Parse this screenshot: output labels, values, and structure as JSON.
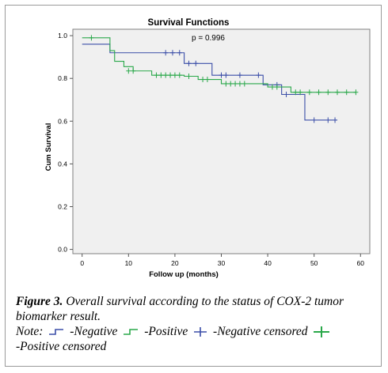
{
  "chart_data": {
    "type": "line",
    "title": "Survival Functions",
    "annotation": "p = 0.996",
    "xlabel": "Follow up (months)",
    "ylabel": "Cum Survival",
    "xlim": [
      -2,
      62
    ],
    "ylim": [
      -0.02,
      1.03
    ],
    "xticks": [
      "0",
      "10",
      "20",
      "30",
      "40",
      "50",
      "60"
    ],
    "yticks": [
      "0.0",
      "0.2",
      "0.4",
      "0.6",
      "0.8",
      "1.0"
    ],
    "grid": false,
    "series": [
      {
        "name": "Negative",
        "color": "#3b4ea8",
        "steps": [
          [
            0,
            0.96
          ],
          [
            6,
            0.92
          ],
          [
            22,
            0.87
          ],
          [
            28,
            0.815
          ],
          [
            39,
            0.77
          ],
          [
            43,
            0.725
          ],
          [
            48,
            0.605
          ],
          [
            55,
            0.605
          ]
        ],
        "censored": [
          [
            18,
            0.92
          ],
          [
            19.5,
            0.92
          ],
          [
            21,
            0.92
          ],
          [
            23,
            0.87
          ],
          [
            24.5,
            0.87
          ],
          [
            30,
            0.815
          ],
          [
            31,
            0.815
          ],
          [
            34,
            0.815
          ],
          [
            38,
            0.815
          ],
          [
            42,
            0.77
          ],
          [
            44,
            0.725
          ],
          [
            50,
            0.605
          ],
          [
            53,
            0.605
          ],
          [
            54.5,
            0.605
          ]
        ]
      },
      {
        "name": "Positive",
        "color": "#2aa84a",
        "steps": [
          [
            0,
            0.99
          ],
          [
            6,
            0.93
          ],
          [
            7,
            0.88
          ],
          [
            9,
            0.855
          ],
          [
            11,
            0.835
          ],
          [
            15,
            0.815
          ],
          [
            22,
            0.81
          ],
          [
            25,
            0.795
          ],
          [
            30,
            0.775
          ],
          [
            40,
            0.76
          ],
          [
            45,
            0.735
          ],
          [
            59,
            0.735
          ]
        ],
        "censored": [
          [
            2,
            0.99
          ],
          [
            10,
            0.835
          ],
          [
            11,
            0.835
          ],
          [
            16,
            0.815
          ],
          [
            17,
            0.815
          ],
          [
            18,
            0.815
          ],
          [
            19,
            0.815
          ],
          [
            20,
            0.815
          ],
          [
            21,
            0.815
          ],
          [
            23,
            0.81
          ],
          [
            26,
            0.795
          ],
          [
            27,
            0.795
          ],
          [
            31,
            0.775
          ],
          [
            32,
            0.775
          ],
          [
            33,
            0.775
          ],
          [
            34,
            0.775
          ],
          [
            35,
            0.775
          ],
          [
            41,
            0.76
          ],
          [
            42,
            0.76
          ],
          [
            46,
            0.735
          ],
          [
            47,
            0.735
          ],
          [
            49,
            0.735
          ],
          [
            51,
            0.735
          ],
          [
            53,
            0.735
          ],
          [
            55,
            0.735
          ],
          [
            57,
            0.735
          ],
          [
            59,
            0.735
          ]
        ]
      }
    ]
  },
  "caption": {
    "figure_label": "Figure 3.",
    "figure_text": " Overall survival according to the status of COX-2 tumor biomarker result.",
    "note_label": "Note:",
    "legend_negative": "-Negative",
    "legend_positive": "-Positive",
    "legend_negative_censored": "-Negative censored",
    "legend_positive_censored": "-Positive censored"
  }
}
